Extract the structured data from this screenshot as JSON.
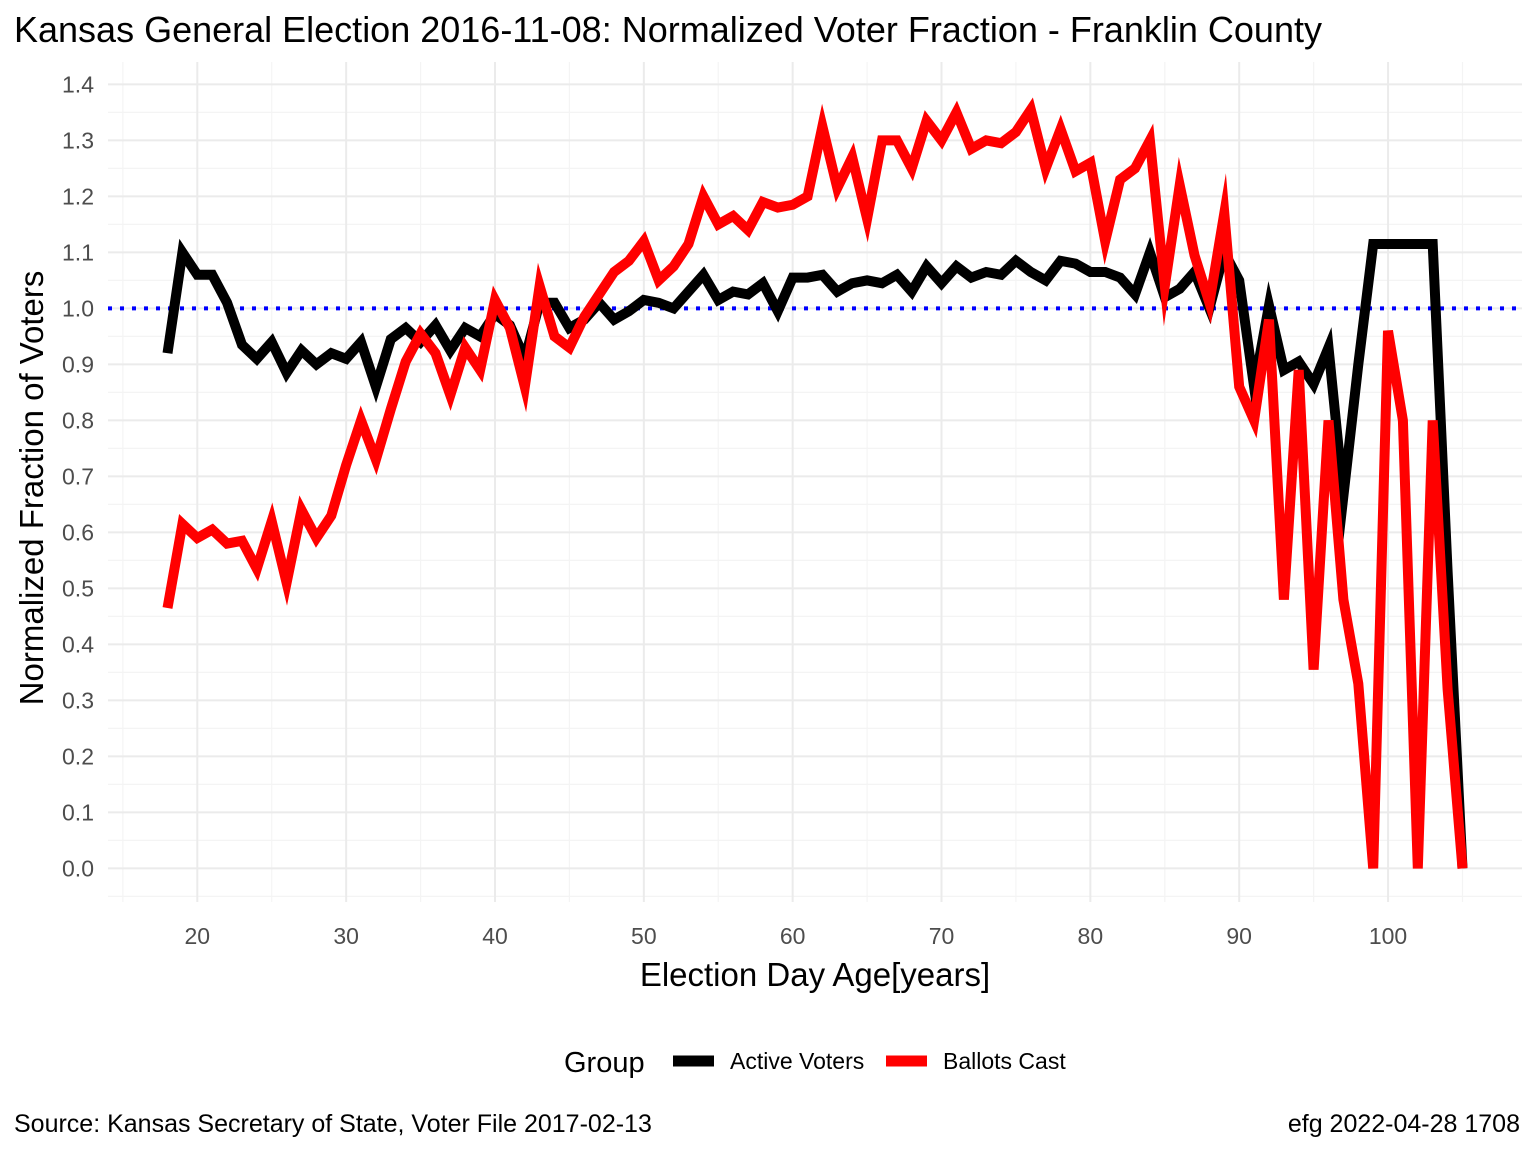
{
  "chart_data": {
    "type": "line",
    "title": "Kansas General Election 2016-11-08:  Normalized Voter Fraction - Franklin County",
    "xlabel": "Election Day Age[years]",
    "ylabel": "Normalized Fraction of Voters",
    "xlim": [
      14,
      109
    ],
    "ylim": [
      -0.06,
      1.44
    ],
    "x_ticks": [
      20,
      30,
      40,
      50,
      60,
      70,
      80,
      90,
      100
    ],
    "y_ticks": [
      0.0,
      0.1,
      0.2,
      0.3,
      0.4,
      0.5,
      0.6,
      0.7,
      0.8,
      0.9,
      1.0,
      1.1,
      1.2,
      1.3,
      1.4
    ],
    "grid": true,
    "legend": {
      "position": "bottom",
      "title": "Group",
      "entries": [
        "Active Voters",
        "Ballots Cast"
      ]
    },
    "reference_line": {
      "y": 1.0,
      "style": "dotted",
      "color": "#0000ff"
    },
    "series": [
      {
        "name": "Active Voters",
        "color": "#000000",
        "x": [
          18,
          19,
          20,
          21,
          22,
          23,
          24,
          25,
          26,
          27,
          28,
          29,
          30,
          31,
          32,
          33,
          34,
          35,
          36,
          37,
          38,
          39,
          40,
          41,
          42,
          43,
          44,
          45,
          46,
          47,
          48,
          49,
          50,
          51,
          52,
          53,
          54,
          55,
          56,
          57,
          58,
          59,
          60,
          61,
          62,
          63,
          64,
          65,
          66,
          67,
          68,
          69,
          70,
          71,
          72,
          73,
          74,
          75,
          76,
          77,
          78,
          79,
          80,
          81,
          82,
          83,
          84,
          85,
          86,
          87,
          88,
          89,
          90,
          91,
          92,
          93,
          94,
          95,
          96,
          97,
          98,
          99,
          100,
          101,
          102,
          103,
          104,
          105
        ],
        "y": [
          0.92,
          1.1,
          1.06,
          1.06,
          1.01,
          0.935,
          0.91,
          0.94,
          0.885,
          0.925,
          0.9,
          0.92,
          0.91,
          0.94,
          0.86,
          0.945,
          0.965,
          0.94,
          0.97,
          0.925,
          0.965,
          0.95,
          0.99,
          0.97,
          0.91,
          1.01,
          1.01,
          0.965,
          0.98,
          1.01,
          0.98,
          0.995,
          1.015,
          1.01,
          1.0,
          1.03,
          1.06,
          1.015,
          1.03,
          1.025,
          1.045,
          0.995,
          1.055,
          1.055,
          1.06,
          1.03,
          1.045,
          1.05,
          1.045,
          1.06,
          1.03,
          1.075,
          1.045,
          1.075,
          1.055,
          1.065,
          1.06,
          1.085,
          1.065,
          1.05,
          1.085,
          1.08,
          1.065,
          1.065,
          1.055,
          1.025,
          1.1,
          1.02,
          1.035,
          1.065,
          1.0,
          1.1,
          1.05,
          0.86,
          1.005,
          0.89,
          0.905,
          0.865,
          0.93,
          0.665,
          0.9,
          1.115,
          1.115,
          1.115,
          1.115,
          1.115,
          0.53,
          0.0
        ]
      },
      {
        "name": "Ballots Cast",
        "color": "#ff0000",
        "x": [
          18,
          19,
          20,
          21,
          22,
          23,
          24,
          25,
          26,
          27,
          28,
          29,
          30,
          31,
          32,
          33,
          34,
          35,
          36,
          37,
          38,
          39,
          40,
          41,
          42,
          43,
          44,
          45,
          46,
          47,
          48,
          49,
          50,
          51,
          52,
          53,
          54,
          55,
          56,
          57,
          58,
          59,
          60,
          61,
          62,
          63,
          64,
          65,
          66,
          67,
          68,
          69,
          70,
          71,
          72,
          73,
          74,
          75,
          76,
          77,
          78,
          79,
          80,
          81,
          82,
          83,
          84,
          85,
          86,
          87,
          88,
          89,
          90,
          91,
          92,
          93,
          94,
          95,
          96,
          97,
          98,
          99,
          100,
          101,
          102,
          103,
          104,
          105
        ],
        "y": [
          0.465,
          0.615,
          0.59,
          0.605,
          0.58,
          0.585,
          0.535,
          0.62,
          0.51,
          0.64,
          0.59,
          0.63,
          0.72,
          0.8,
          0.73,
          0.82,
          0.905,
          0.955,
          0.92,
          0.845,
          0.93,
          0.89,
          1.015,
          0.965,
          0.86,
          1.04,
          0.95,
          0.93,
          0.985,
          1.025,
          1.065,
          1.085,
          1.12,
          1.05,
          1.075,
          1.115,
          1.2,
          1.15,
          1.165,
          1.14,
          1.19,
          1.18,
          1.185,
          1.2,
          1.325,
          1.215,
          1.27,
          1.16,
          1.3,
          1.3,
          1.25,
          1.335,
          1.3,
          1.35,
          1.285,
          1.3,
          1.295,
          1.315,
          1.355,
          1.25,
          1.32,
          1.245,
          1.26,
          1.12,
          1.23,
          1.25,
          1.3,
          1.04,
          1.22,
          1.095,
          1.01,
          1.17,
          0.86,
          0.8,
          0.98,
          0.48,
          0.89,
          0.355,
          0.8,
          0.48,
          0.33,
          0.0,
          0.96,
          0.8,
          0.0,
          0.8,
          0.32,
          0.0
        ]
      }
    ]
  },
  "captions": {
    "source": "Source:  Kansas Secretary of State, Voter File  2017-02-13",
    "stamp": "efg 2022-04-28 1708"
  }
}
